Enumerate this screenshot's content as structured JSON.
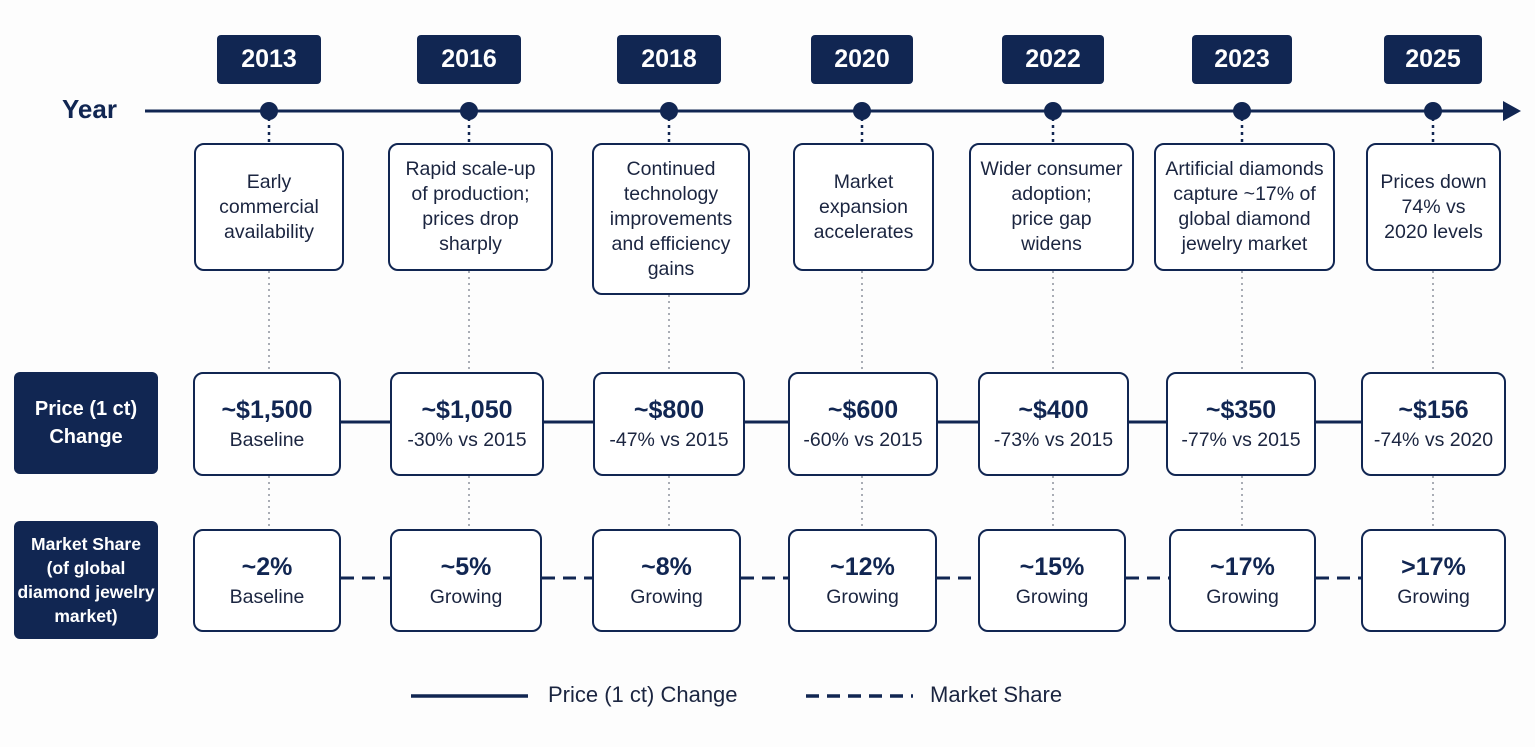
{
  "axis_label": "Year",
  "row_labels": {
    "price": [
      "Price (1 ct)",
      "Change"
    ],
    "share": [
      "Market Share",
      "(of global",
      "diamond jewelry",
      "market)"
    ]
  },
  "years": [
    {
      "year": "2013",
      "event": [
        "Early",
        "commercial",
        "availability"
      ],
      "price": "~$1,500",
      "price_note": "Baseline",
      "share": "~2%",
      "share_note": "Baseline"
    },
    {
      "year": "2016",
      "event": [
        "Rapid scale-up",
        "of production;",
        "prices drop",
        "sharply"
      ],
      "price": "~$1,050",
      "price_note": "-30% vs 2015",
      "share": "~5%",
      "share_note": "Growing"
    },
    {
      "year": "2018",
      "event": [
        "Continued",
        "technology",
        "improvements",
        "and efficiency",
        "gains"
      ],
      "price": "~$800",
      "price_note": "-47% vs 2015",
      "share": "~8%",
      "share_note": "Growing"
    },
    {
      "year": "2020",
      "event": [
        "Market",
        "expansion",
        "accelerates"
      ],
      "price": "~$600",
      "price_note": "-60% vs 2015",
      "share": "~12%",
      "share_note": "Growing"
    },
    {
      "year": "2022",
      "event": [
        "Wider consumer",
        "adoption;",
        "price gap",
        "widens"
      ],
      "price": "~$400",
      "price_note": "-73% vs 2015",
      "share": "~15%",
      "share_note": "Growing"
    },
    {
      "year": "2023",
      "event": [
        "Artificial diamonds",
        "capture ~17% of",
        "global diamond",
        "jewelry market"
      ],
      "price": "~$350",
      "price_note": "-77% vs 2015",
      "share": "~17%",
      "share_note": "Growing"
    },
    {
      "year": "2025",
      "event": [
        "Prices down",
        "74% vs",
        "2020 levels"
      ],
      "price": "~$156",
      "price_note": "-74% vs 2020",
      "share": ">17%",
      "share_note": "Growing"
    }
  ],
  "legend": {
    "price": "Price (1 ct) Change",
    "share": "Market Share"
  },
  "colors": {
    "navy": "#112652",
    "gray_dots": "#a9adb5"
  }
}
